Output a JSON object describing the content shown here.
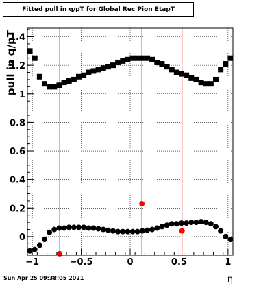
{
  "chart_data": {
    "type": "scatter",
    "title": "Fitted pull in q/pT for Global Rec Pion EtapT",
    "xlabel": "η",
    "ylabel": "pull in q/pT",
    "xlim": [
      -1.05,
      1.05
    ],
    "ylim": [
      -0.13,
      1.46
    ],
    "grid": true,
    "xticks": [
      -1,
      -0.5,
      0,
      0.5,
      1
    ],
    "xtick_labels": [
      "−1",
      "−0.5",
      "0",
      "0.5",
      "1"
    ],
    "yticks": [
      0,
      0.2,
      0.4,
      0.6,
      0.8,
      1,
      1.2,
      1.4
    ],
    "ytick_labels": [
      "0",
      "0.2",
      "0.4",
      "0.6",
      "0.8",
      "1",
      "1.2",
      "1.4"
    ],
    "series": [
      {
        "marker": "square",
        "color": "#000000",
        "x": [
          -1.025,
          -0.975,
          -0.925,
          -0.875,
          -0.825,
          -0.775,
          -0.725,
          -0.675,
          -0.625,
          -0.575,
          -0.525,
          -0.475,
          -0.425,
          -0.375,
          -0.325,
          -0.275,
          -0.225,
          -0.175,
          -0.125,
          -0.075,
          -0.025,
          0.025,
          0.075,
          0.125,
          0.175,
          0.225,
          0.275,
          0.325,
          0.375,
          0.425,
          0.475,
          0.525,
          0.575,
          0.625,
          0.675,
          0.725,
          0.775,
          0.825,
          0.875,
          0.925,
          0.975,
          1.025
        ],
        "y": [
          1.3,
          1.25,
          1.12,
          1.07,
          1.05,
          1.05,
          1.06,
          1.08,
          1.09,
          1.1,
          1.12,
          1.13,
          1.15,
          1.16,
          1.17,
          1.18,
          1.19,
          1.2,
          1.22,
          1.23,
          1.24,
          1.25,
          1.25,
          1.25,
          1.25,
          1.24,
          1.22,
          1.21,
          1.19,
          1.17,
          1.15,
          1.14,
          1.13,
          1.11,
          1.1,
          1.08,
          1.07,
          1.07,
          1.1,
          1.17,
          1.21,
          1.25
        ]
      },
      {
        "marker": "circle",
        "color": "#000000",
        "x": [
          -1.025,
          -0.975,
          -0.925,
          -0.875,
          -0.825,
          -0.775,
          -0.725,
          -0.675,
          -0.625,
          -0.575,
          -0.525,
          -0.475,
          -0.425,
          -0.375,
          -0.325,
          -0.275,
          -0.225,
          -0.175,
          -0.125,
          -0.075,
          -0.025,
          0.025,
          0.075,
          0.125,
          0.175,
          0.225,
          0.275,
          0.325,
          0.375,
          0.425,
          0.475,
          0.525,
          0.575,
          0.625,
          0.675,
          0.725,
          0.775,
          0.825,
          0.875,
          0.925,
          0.975,
          1.025
        ],
        "y": [
          -0.1,
          -0.09,
          -0.06,
          -0.02,
          0.03,
          0.05,
          0.06,
          0.06,
          0.065,
          0.065,
          0.065,
          0.065,
          0.06,
          0.06,
          0.055,
          0.05,
          0.045,
          0.04,
          0.035,
          0.035,
          0.035,
          0.035,
          0.035,
          0.04,
          0.045,
          0.05,
          0.06,
          0.07,
          0.08,
          0.09,
          0.09,
          0.095,
          0.095,
          0.1,
          0.1,
          0.105,
          0.1,
          0.09,
          0.07,
          0.04,
          0.0,
          -0.02
        ]
      },
      {
        "marker": "circle",
        "color": "#ff0000",
        "x": [
          -0.72,
          0.12,
          0.53
        ],
        "y": [
          -0.12,
          0.23,
          0.04
        ]
      }
    ],
    "vertical_lines": [
      {
        "x": -0.72,
        "color": "#ff0000"
      },
      {
        "x": 0.12,
        "color": "#ff0000"
      },
      {
        "x": 0.53,
        "color": "#ff0000"
      }
    ]
  },
  "footer": {
    "timestamp": "Sun Apr 25 09:38:05 2021"
  }
}
